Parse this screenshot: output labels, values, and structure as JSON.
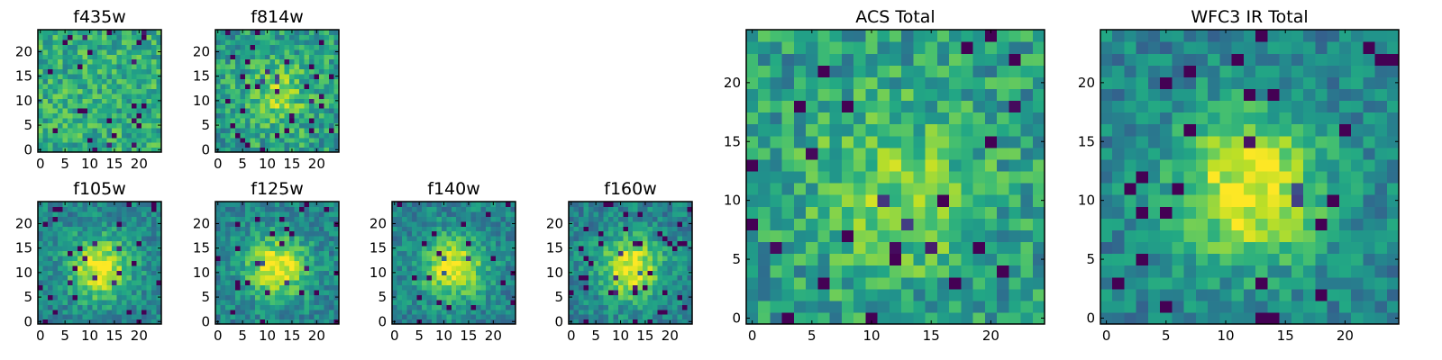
{
  "chart_data": [
    {
      "type": "heatmap",
      "title": "f435w",
      "size": 25,
      "xticks": [
        "0",
        "5",
        "10",
        "15",
        "20"
      ],
      "yticks": [
        "0",
        "5",
        "10",
        "15",
        "20"
      ],
      "colormap": "viridis",
      "pattern": "noise",
      "seed": 11
    },
    {
      "type": "heatmap",
      "title": "f814w",
      "size": 25,
      "xticks": [
        "0",
        "5",
        "10",
        "15",
        "20"
      ],
      "yticks": [
        "0",
        "5",
        "10",
        "15",
        "20"
      ],
      "colormap": "viridis",
      "pattern": "weak-center",
      "seed": 23
    },
    {
      "type": "heatmap",
      "title": "f105w",
      "size": 25,
      "xticks": [
        "0",
        "5",
        "10",
        "15",
        "20"
      ],
      "yticks": [
        "0",
        "5",
        "10",
        "15",
        "20"
      ],
      "colormap": "viridis",
      "pattern": "center",
      "seed": 37
    },
    {
      "type": "heatmap",
      "title": "f125w",
      "size": 25,
      "xticks": [
        "0",
        "5",
        "10",
        "15",
        "20"
      ],
      "yticks": [
        "0",
        "5",
        "10",
        "15",
        "20"
      ],
      "colormap": "viridis",
      "pattern": "center",
      "seed": 41
    },
    {
      "type": "heatmap",
      "title": "f140w",
      "size": 25,
      "xticks": [
        "0",
        "5",
        "10",
        "15",
        "20"
      ],
      "yticks": [
        "0",
        "5",
        "10",
        "15",
        "20"
      ],
      "colormap": "viridis",
      "pattern": "center",
      "seed": 53
    },
    {
      "type": "heatmap",
      "title": "f160w",
      "size": 25,
      "xticks": [
        "0",
        "5",
        "10",
        "15",
        "20"
      ],
      "yticks": [
        "0",
        "5",
        "10",
        "15",
        "20"
      ],
      "colormap": "viridis",
      "pattern": "center",
      "seed": 67
    },
    {
      "type": "heatmap",
      "title": "ACS Total",
      "size": 25,
      "xticks": [
        "0",
        "5",
        "10",
        "15",
        "20"
      ],
      "yticks": [
        "0",
        "5",
        "10",
        "15",
        "20"
      ],
      "colormap": "viridis",
      "pattern": "weak-center",
      "seed": 79
    },
    {
      "type": "heatmap",
      "title": "WFC3 IR Total",
      "size": 25,
      "xticks": [
        "0",
        "5",
        "10",
        "15",
        "20"
      ],
      "yticks": [
        "0",
        "5",
        "10",
        "15",
        "20"
      ],
      "colormap": "viridis",
      "pattern": "center",
      "seed": 97
    }
  ],
  "colors": {
    "viridis": [
      "#440154",
      "#482475",
      "#414487",
      "#355f8d",
      "#2a788e",
      "#21918c",
      "#22a884",
      "#44bf70",
      "#7ad151",
      "#bddf26",
      "#fde725"
    ]
  }
}
